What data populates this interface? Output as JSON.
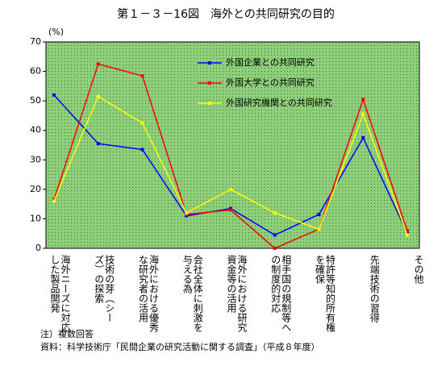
{
  "chart_data": {
    "type": "line",
    "title": "第１－３－16図　海外との共同研究の目的",
    "y_unit": "(%)",
    "categories": [
      "海外ニーズに対応した製品開発",
      "技術の芽（シーズ）の探索",
      "海外における優秀な研究者の活用",
      "会社全体に刺激を与える為",
      "海外における研究資金等の活用",
      "相手国の規制等への制度的対応",
      "特許等知的所有権を確保",
      "先端技術の習得",
      "その他"
    ],
    "series": [
      {
        "name": "外国企業との共同研究",
        "color": "#0000ff",
        "values": [
          52,
          35.5,
          33.5,
          11,
          13.5,
          4.5,
          11.5,
          37.5,
          5
        ]
      },
      {
        "name": "外国大学との共同研究",
        "color": "#ff0000",
        "values": [
          16.5,
          62.5,
          58.5,
          11.5,
          13,
          0,
          6.5,
          50.5,
          6
        ]
      },
      {
        "name": "外国研究機関との共同研究",
        "color": "#ffff00",
        "values": [
          16,
          51.5,
          42.5,
          12,
          20,
          12,
          6.5,
          45.5,
          4.5
        ]
      }
    ],
    "ylim": [
      0,
      70
    ],
    "yticks": [
      0,
      10,
      20,
      30,
      40,
      50,
      60,
      70
    ],
    "notes": [
      "注）複数回答",
      "資料：科学技術庁「民間企業の研究活動に関する調査」（平成８年度）"
    ]
  }
}
